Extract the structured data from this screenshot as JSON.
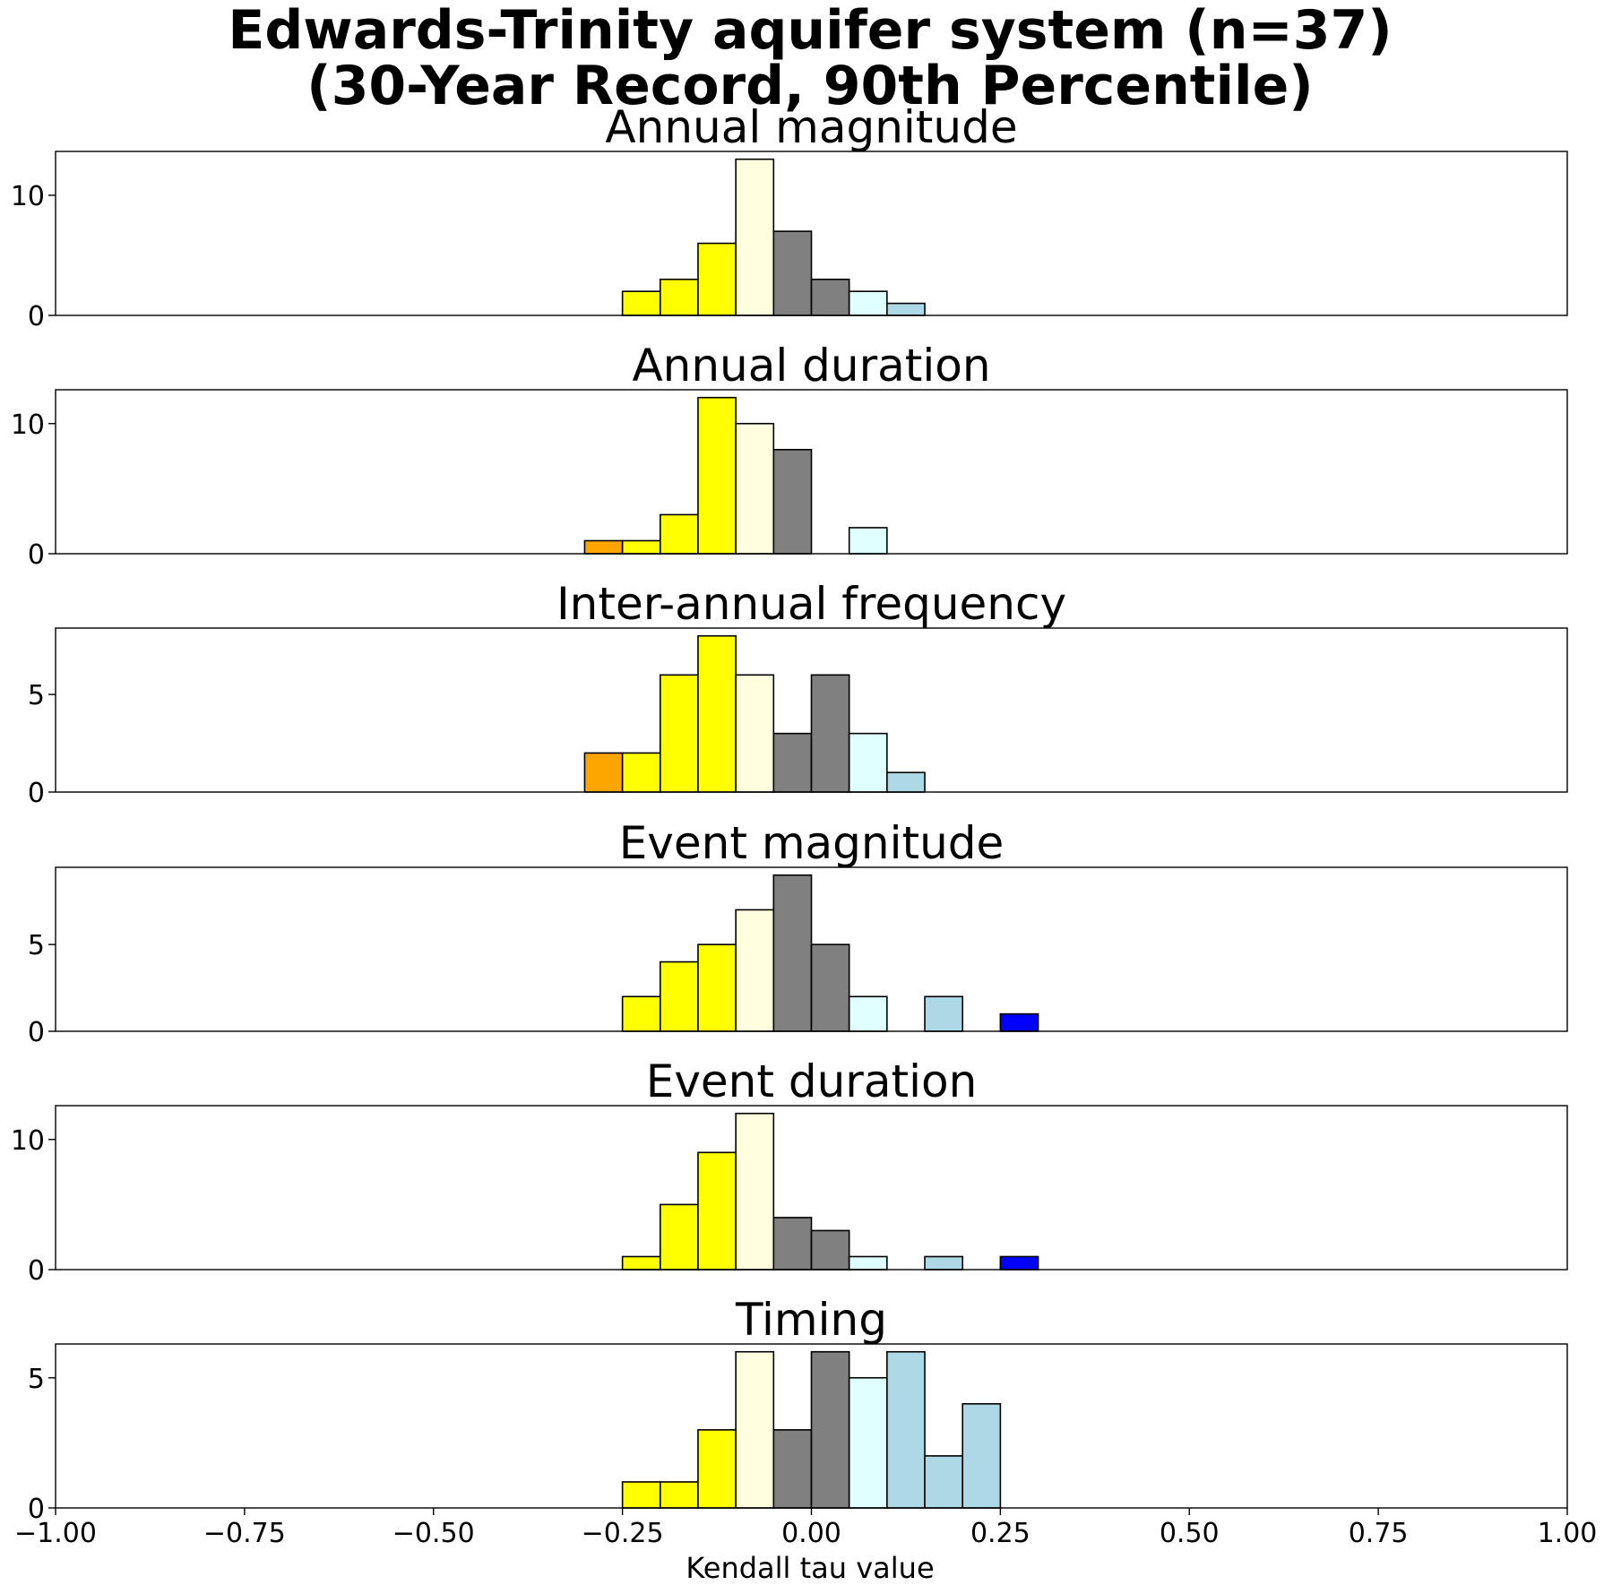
{
  "chart_data": {
    "type": "bar",
    "title_lines": [
      "Edwards-Trinity aquifer system (n=37)",
      "(30-Year Record, 90th Percentile)"
    ],
    "xlabel": "Kendall tau value",
    "xlim": [
      -1.0,
      1.0
    ],
    "x_ticks": [
      -1.0,
      -0.75,
      -0.5,
      -0.25,
      0.0,
      0.25,
      0.5,
      0.75,
      1.0
    ],
    "x_tick_labels": [
      "−1.00",
      "−0.75",
      "−0.50",
      "−0.25",
      "0.00",
      "0.25",
      "0.50",
      "0.75",
      "1.00"
    ],
    "bin_width": 0.05,
    "colors": {
      "orange": "#ffa500",
      "yellow": "#ffff00",
      "lightyellow": "#ffffe0",
      "gray": "#808080",
      "lightcyan": "#e0ffff",
      "lightblue": "#add8e6",
      "blue": "#0000ff"
    },
    "panels": [
      {
        "title": "Annual magnitude",
        "ylim": [
          0,
          13.65
        ],
        "y_ticks": [
          0,
          10
        ],
        "y_tick_labels": [
          "0",
          "10"
        ],
        "bins": [
          {
            "x0": -0.25,
            "count": 2,
            "color": "yellow"
          },
          {
            "x0": -0.2,
            "count": 3,
            "color": "yellow"
          },
          {
            "x0": -0.15,
            "count": 6,
            "color": "yellow"
          },
          {
            "x0": -0.1,
            "count": 13,
            "color": "lightyellow"
          },
          {
            "x0": -0.05,
            "count": 7,
            "color": "gray"
          },
          {
            "x0": 0.0,
            "count": 3,
            "color": "gray"
          },
          {
            "x0": 0.05,
            "count": 2,
            "color": "lightcyan"
          },
          {
            "x0": 0.1,
            "count": 1,
            "color": "lightblue"
          }
        ]
      },
      {
        "title": "Annual duration",
        "ylim": [
          0,
          12.6
        ],
        "y_ticks": [
          0,
          10
        ],
        "y_tick_labels": [
          "0",
          "10"
        ],
        "bins": [
          {
            "x0": -0.3,
            "count": 1,
            "color": "orange"
          },
          {
            "x0": -0.25,
            "count": 1,
            "color": "yellow"
          },
          {
            "x0": -0.2,
            "count": 3,
            "color": "yellow"
          },
          {
            "x0": -0.15,
            "count": 12,
            "color": "yellow"
          },
          {
            "x0": -0.1,
            "count": 10,
            "color": "lightyellow"
          },
          {
            "x0": -0.05,
            "count": 8,
            "color": "gray"
          },
          {
            "x0": 0.05,
            "count": 2,
            "color": "lightcyan"
          }
        ]
      },
      {
        "title": "Inter-annual frequency",
        "ylim": [
          0,
          8.4
        ],
        "y_ticks": [
          0,
          5
        ],
        "y_tick_labels": [
          "0",
          "5"
        ],
        "bins": [
          {
            "x0": -0.3,
            "count": 2,
            "color": "orange"
          },
          {
            "x0": -0.25,
            "count": 2,
            "color": "yellow"
          },
          {
            "x0": -0.2,
            "count": 6,
            "color": "yellow"
          },
          {
            "x0": -0.15,
            "count": 8,
            "color": "yellow"
          },
          {
            "x0": -0.1,
            "count": 6,
            "color": "lightyellow"
          },
          {
            "x0": -0.05,
            "count": 3,
            "color": "gray"
          },
          {
            "x0": 0.0,
            "count": 6,
            "color": "gray"
          },
          {
            "x0": 0.05,
            "count": 3,
            "color": "lightcyan"
          },
          {
            "x0": 0.1,
            "count": 1,
            "color": "lightblue"
          }
        ]
      },
      {
        "title": "Event magnitude",
        "ylim": [
          0,
          9.45
        ],
        "y_ticks": [
          0,
          5
        ],
        "y_tick_labels": [
          "0",
          "5"
        ],
        "bins": [
          {
            "x0": -0.25,
            "count": 2,
            "color": "yellow"
          },
          {
            "x0": -0.2,
            "count": 4,
            "color": "yellow"
          },
          {
            "x0": -0.15,
            "count": 5,
            "color": "yellow"
          },
          {
            "x0": -0.1,
            "count": 7,
            "color": "lightyellow"
          },
          {
            "x0": -0.05,
            "count": 9,
            "color": "gray"
          },
          {
            "x0": 0.0,
            "count": 5,
            "color": "gray"
          },
          {
            "x0": 0.05,
            "count": 2,
            "color": "lightcyan"
          },
          {
            "x0": 0.15,
            "count": 2,
            "color": "lightblue"
          },
          {
            "x0": 0.25,
            "count": 1,
            "color": "blue"
          }
        ]
      },
      {
        "title": "Event duration",
        "ylim": [
          0,
          12.6
        ],
        "y_ticks": [
          0,
          10
        ],
        "y_tick_labels": [
          "0",
          "10"
        ],
        "bins": [
          {
            "x0": -0.25,
            "count": 1,
            "color": "yellow"
          },
          {
            "x0": -0.2,
            "count": 5,
            "color": "yellow"
          },
          {
            "x0": -0.15,
            "count": 9,
            "color": "yellow"
          },
          {
            "x0": -0.1,
            "count": 12,
            "color": "lightyellow"
          },
          {
            "x0": -0.05,
            "count": 4,
            "color": "gray"
          },
          {
            "x0": 0.0,
            "count": 3,
            "color": "gray"
          },
          {
            "x0": 0.05,
            "count": 1,
            "color": "lightcyan"
          },
          {
            "x0": 0.15,
            "count": 1,
            "color": "lightblue"
          },
          {
            "x0": 0.25,
            "count": 1,
            "color": "blue"
          }
        ]
      },
      {
        "title": "Timing",
        "ylim": [
          0,
          6.3
        ],
        "y_ticks": [
          0,
          5
        ],
        "y_tick_labels": [
          "0",
          "5"
        ],
        "bins": [
          {
            "x0": -0.25,
            "count": 1,
            "color": "yellow"
          },
          {
            "x0": -0.2,
            "count": 1,
            "color": "yellow"
          },
          {
            "x0": -0.15,
            "count": 3,
            "color": "yellow"
          },
          {
            "x0": -0.1,
            "count": 6,
            "color": "lightyellow"
          },
          {
            "x0": -0.05,
            "count": 3,
            "color": "gray"
          },
          {
            "x0": 0.0,
            "count": 6,
            "color": "gray"
          },
          {
            "x0": 0.05,
            "count": 5,
            "color": "lightcyan"
          },
          {
            "x0": 0.1,
            "count": 6,
            "color": "lightblue"
          },
          {
            "x0": 0.15,
            "count": 2,
            "color": "lightblue"
          },
          {
            "x0": 0.2,
            "count": 4,
            "color": "lightblue"
          }
        ]
      }
    ]
  }
}
